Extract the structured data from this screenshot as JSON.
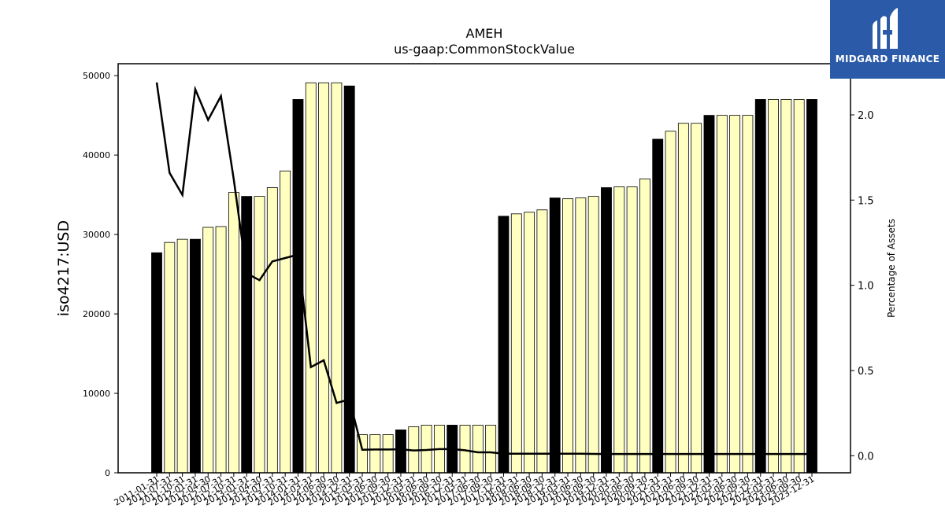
{
  "chart_data": {
    "type": "bar",
    "title": "AMEH",
    "subtitle": "us-gaap:CommonStockValue",
    "ylabel": "iso4217:USD",
    "y2label": "Percentage of Assets",
    "ylim": [
      0,
      51500
    ],
    "y2lim": [
      -0.1,
      2.3
    ],
    "yticks": [
      0,
      10000,
      20000,
      30000,
      40000,
      50000
    ],
    "y2ticks": [
      0.0,
      0.5,
      1.0,
      1.5,
      2.0
    ],
    "categories": [
      "2011-01-31",
      "2011-07-31",
      "2011-10-31",
      "2012-01-31",
      "2012-04-30",
      "2012-07-31",
      "2012-10-31",
      "2013-01-31",
      "2013-04-30",
      "2013-07-31",
      "2013-10-31",
      "2014-01-31",
      "2014-03-31",
      "2014-06-30",
      "2014-09-30",
      "2014-12-31",
      "2015-03-31",
      "2015-06-30",
      "2015-09-30",
      "2015-12-31",
      "2016-03-31",
      "2016-06-30",
      "2016-09-30",
      "2016-12-31",
      "2017-03-31",
      "2017-06-30",
      "2017-09-30",
      "2017-12-31",
      "2018-03-31",
      "2018-06-30",
      "2018-09-30",
      "2018-12-31",
      "2019-03-31",
      "2019-06-30",
      "2019-09-30",
      "2019-12-31",
      "2020-03-31",
      "2020-06-30",
      "2020-09-30",
      "2020-12-31",
      "2021-03-31",
      "2021-06-30",
      "2021-09-30",
      "2021-12-31",
      "2022-03-31",
      "2022-06-30",
      "2022-09-30",
      "2022-12-31",
      "2023-03-31",
      "2023-06-30",
      "2023-09-30",
      "2023-12-31"
    ],
    "series": [
      {
        "kind": "bar",
        "values": [
          27700,
          29000,
          29400,
          29400,
          30900,
          31000,
          35300,
          34800,
          34800,
          35900,
          38000,
          47000,
          49100,
          49100,
          49100,
          48700,
          4800,
          4800,
          4800,
          5400,
          5800,
          6000,
          6000,
          6000,
          6000,
          6000,
          6000,
          32300,
          32600,
          32800,
          33100,
          34600,
          34500,
          34600,
          34800,
          35900,
          36000,
          36000,
          37000,
          42000,
          43000,
          44000,
          44000,
          45000,
          45000,
          45000,
          45000,
          47000,
          47000,
          47000,
          47000,
          47000
        ],
        "highlighted": [
          true,
          false,
          false,
          true,
          false,
          false,
          false,
          true,
          false,
          false,
          false,
          true,
          false,
          false,
          false,
          true,
          false,
          false,
          false,
          true,
          false,
          false,
          false,
          true,
          false,
          false,
          false,
          true,
          false,
          false,
          false,
          true,
          false,
          false,
          false,
          true,
          false,
          false,
          false,
          true,
          false,
          false,
          false,
          true,
          false,
          false,
          false,
          true,
          false,
          false,
          false,
          true
        ],
        "color_highlight": "#000000",
        "color_normal": "#ffffc0"
      },
      {
        "kind": "line",
        "axis": "right",
        "color": "#000000",
        "values": [
          2.19,
          1.66,
          1.53,
          2.15,
          1.97,
          2.11,
          1.62,
          1.07,
          1.03,
          1.14,
          1.16,
          1.18,
          0.52,
          0.56,
          0.31,
          0.33,
          0.035,
          0.037,
          0.037,
          0.038,
          0.031,
          0.034,
          0.039,
          0.039,
          0.032,
          0.02,
          0.02,
          0.012,
          0.012,
          0.012,
          0.012,
          0.012,
          0.012,
          0.012,
          0.011,
          0.01,
          0.01,
          0.01,
          0.01,
          0.01,
          0.01,
          0.01,
          0.01,
          0.01,
          0.01,
          0.01,
          0.01,
          0.01,
          0.01,
          0.01,
          0.01,
          0.01
        ]
      }
    ]
  },
  "logo": {
    "text": "MIDGARD FINANCE",
    "bg_color": "#2a5aa8"
  }
}
